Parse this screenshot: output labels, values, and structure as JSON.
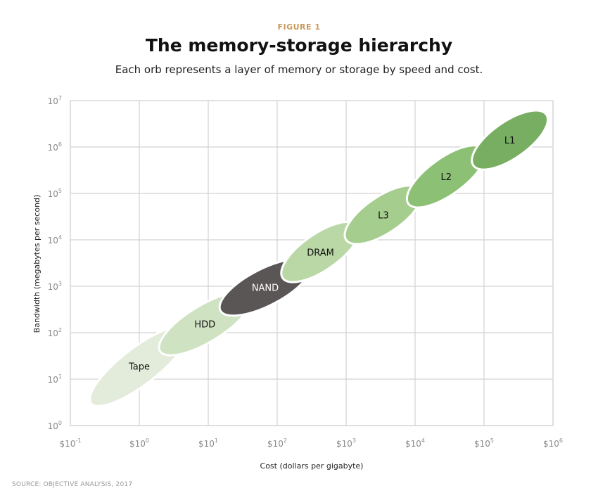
{
  "header": {
    "kicker": "FIGURE 1",
    "title": "The memory-storage hierarchy",
    "subtitle": "Each orb represents a layer of memory or storage by speed and cost."
  },
  "source": "SOURCE: OBJECTIVE ANALYSIS, 2017",
  "chart_data": {
    "type": "scatter",
    "title": "The memory-storage hierarchy",
    "subtitle": "Each orb represents a layer of memory or storage by speed and cost.",
    "xlabel": "Cost (dollars per gigabyte)",
    "ylabel": "Bandwidth (megabytes per second)",
    "x_scale": "log",
    "y_scale": "log",
    "xlim": [
      0.1,
      1000000
    ],
    "ylim": [
      1,
      10000000
    ],
    "x_tick_labels": [
      {
        "base": "$10",
        "exp": "-1"
      },
      {
        "base": "$10",
        "exp": "0"
      },
      {
        "base": "$10",
        "exp": "1"
      },
      {
        "base": "$10",
        "exp": "2"
      },
      {
        "base": "$10",
        "exp": "3"
      },
      {
        "base": "$10",
        "exp": "4"
      },
      {
        "base": "$10",
        "exp": "5"
      },
      {
        "base": "$10",
        "exp": "6"
      }
    ],
    "y_tick_labels": [
      {
        "base": "10",
        "exp": "0"
      },
      {
        "base": "10",
        "exp": "1"
      },
      {
        "base": "10",
        "exp": "2"
      },
      {
        "base": "10",
        "exp": "3"
      },
      {
        "base": "10",
        "exp": "4"
      },
      {
        "base": "10",
        "exp": "5"
      },
      {
        "base": "10",
        "exp": "6"
      },
      {
        "base": "10",
        "exp": "7"
      }
    ],
    "grid": true,
    "points": [
      {
        "label": "Tape",
        "cost_min": 0.2,
        "cost_max": 5,
        "bandwidth_min": 3,
        "bandwidth_max": 120,
        "color": "#e3ecdb",
        "text_color": "#111111"
      },
      {
        "label": "HDD",
        "cost_min": 2,
        "cost_max": 40,
        "bandwidth_min": 40,
        "bandwidth_max": 600,
        "color": "#cfe3c2",
        "text_color": "#111111"
      },
      {
        "label": "NAND",
        "cost_min": 15,
        "cost_max": 300,
        "bandwidth_min": 300,
        "bandwidth_max": 3000,
        "color": "#5b5656",
        "text_color": "#ffffff"
      },
      {
        "label": "DRAM",
        "cost_min": 120,
        "cost_max": 1500,
        "bandwidth_min": 1500,
        "bandwidth_max": 20000,
        "color": "#b9d8a6",
        "text_color": "#111111"
      },
      {
        "label": "L3",
        "cost_min": 1000,
        "cost_max": 12000,
        "bandwidth_min": 10000,
        "bandwidth_max": 120000,
        "color": "#a5cd8e",
        "text_color": "#111111"
      },
      {
        "label": "L2",
        "cost_min": 8000,
        "cost_max": 100000,
        "bandwidth_min": 60000,
        "bandwidth_max": 900000,
        "color": "#8cc074",
        "text_color": "#111111"
      },
      {
        "label": "L1",
        "cost_min": 70000,
        "cost_max": 800000,
        "bandwidth_min": 400000,
        "bandwidth_max": 5000000,
        "color": "#78ae62",
        "text_color": "#111111"
      }
    ]
  }
}
